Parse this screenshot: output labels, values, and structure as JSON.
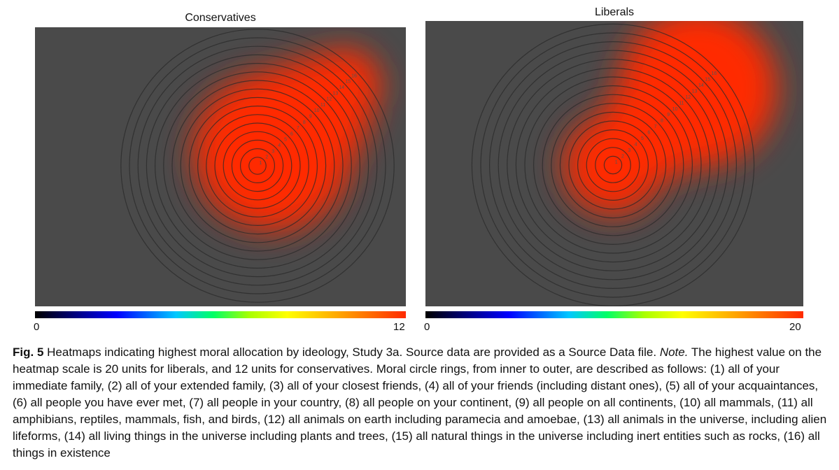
{
  "chart_data": [
    {
      "type": "heatmap",
      "title": "Conservatives",
      "colorbar": {
        "min": "0",
        "max": "12"
      },
      "value_range": [
        0,
        12
      ],
      "ring_labels": [
        "1",
        "2",
        "3",
        "4",
        "5",
        "6",
        "7",
        "8",
        "9",
        "10",
        "11",
        "12",
        "13",
        "14",
        "15",
        "16"
      ],
      "peak_ring": 4,
      "hotspots": [
        {
          "ring": 3.5,
          "relative_intensity": 1.0
        },
        {
          "ring": 7,
          "relative_intensity": 0.8
        },
        {
          "ring": 11,
          "relative_intensity": 0.6
        },
        {
          "ring": 15,
          "relative_intensity": 0.35
        }
      ]
    },
    {
      "type": "heatmap",
      "title": "Liberals",
      "colorbar": {
        "min": "0",
        "max": "20"
      },
      "value_range": [
        0,
        20
      ],
      "ring_labels": [
        "1",
        "2",
        "3",
        "4",
        "5",
        "6",
        "7",
        "8",
        "9",
        "10",
        "11",
        "12",
        "13",
        "14",
        "15",
        "16"
      ],
      "peak_ring": 14,
      "hotspots": [
        {
          "ring": 1,
          "relative_intensity": 0.55
        },
        {
          "ring": 7,
          "relative_intensity": 0.6
        },
        {
          "ring": 11,
          "relative_intensity": 0.75
        },
        {
          "ring": 14,
          "relative_intensity": 1.0
        }
      ]
    }
  ],
  "colors": {
    "plot_background": "#4a4a4a",
    "ring_stroke": "#2a2a2a",
    "colormap": [
      "#000000",
      "#0000ff",
      "#00c8ff",
      "#00ff66",
      "#aaff00",
      "#ffff00",
      "#ffa500",
      "#ff2a00"
    ]
  },
  "caption": {
    "label": "Fig. 5",
    "text_a": " Heatmaps indicating highest moral allocation by ideology, Study 3a. Source data are provided as a Source Data file. ",
    "note": "Note.",
    "text_b": " The highest value on the heatmap scale is 20 units for liberals, and 12 units for conservatives. Moral circle rings, from inner to outer, are described as follows: (1) all of your immediate family, (2) all of your extended family, (3) all of your closest friends, (4) all of your friends (including distant ones), (5) all of your acquaintances, (6) all people you have ever met, (7) all people in your country, (8) all people on your continent, (9) all people on all continents, (10) all mammals, (11) all amphibians, reptiles, mammals, fish, and birds, (12) all animals on earth including paramecia and amoebae, (13) all animals in the universe, including alien lifeforms, (14) all living things in the universe including plants and trees, (15) all natural things in the universe including inert entities such as rocks, (16) all things in existence"
  }
}
